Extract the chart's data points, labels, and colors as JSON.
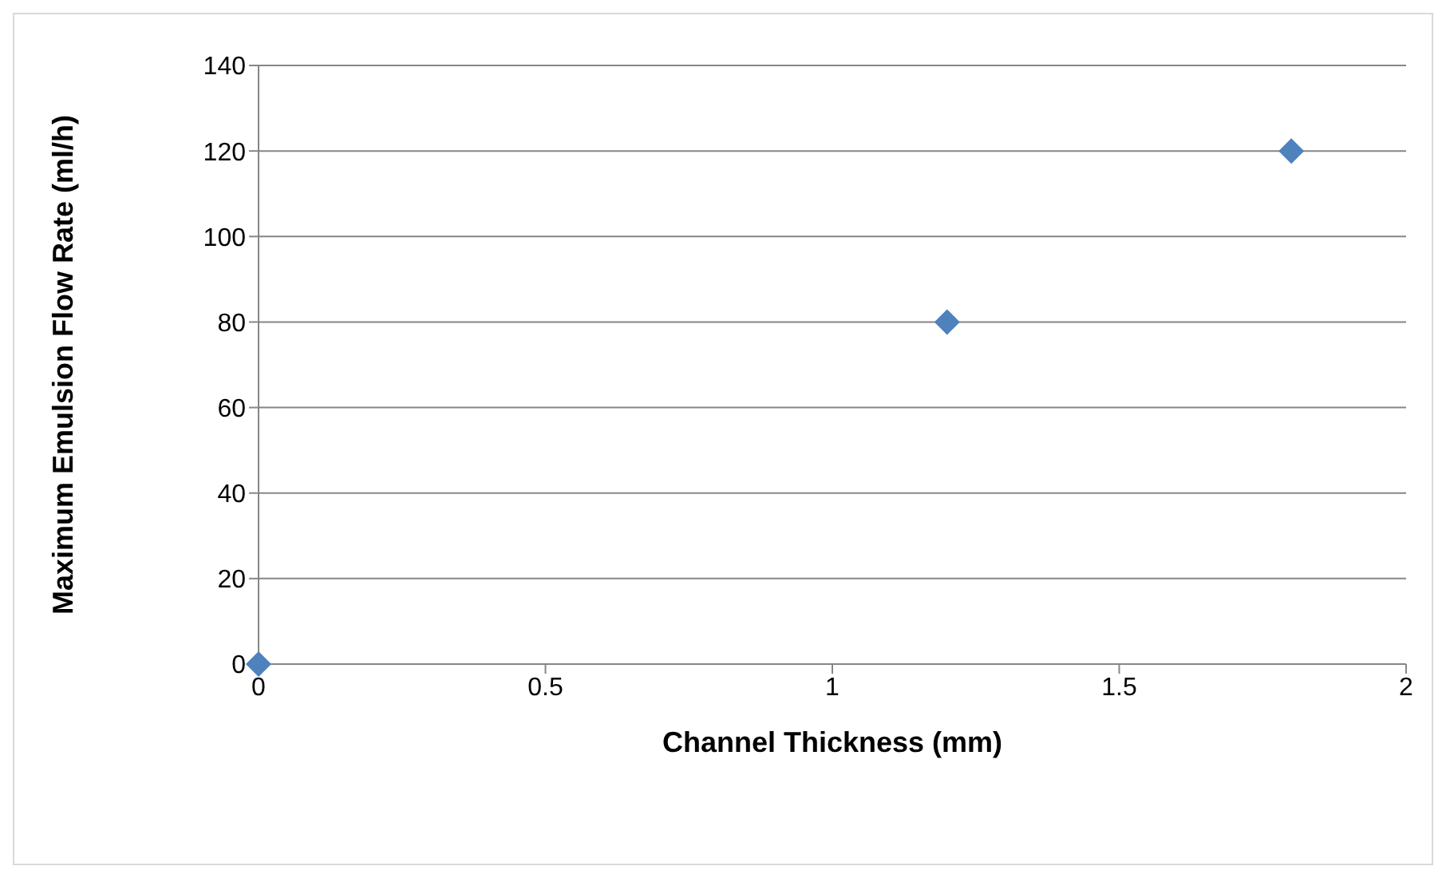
{
  "chart_data": {
    "type": "scatter",
    "xlabel": "Channel Thickness (mm)",
    "ylabel": "Maximum Emulsion Flow Rate (ml/h)",
    "x": [
      0,
      1.2,
      1.8
    ],
    "values": [
      0,
      80,
      120
    ],
    "color": "#4f81bd",
    "marker": "diamond",
    "xlim": [
      0,
      2
    ],
    "xticks": [
      0,
      0.5,
      1,
      1.5,
      2
    ],
    "ylim": [
      0,
      140
    ],
    "yticks": [
      0,
      20,
      40,
      60,
      80,
      100,
      120,
      140
    ],
    "grid": "y"
  }
}
